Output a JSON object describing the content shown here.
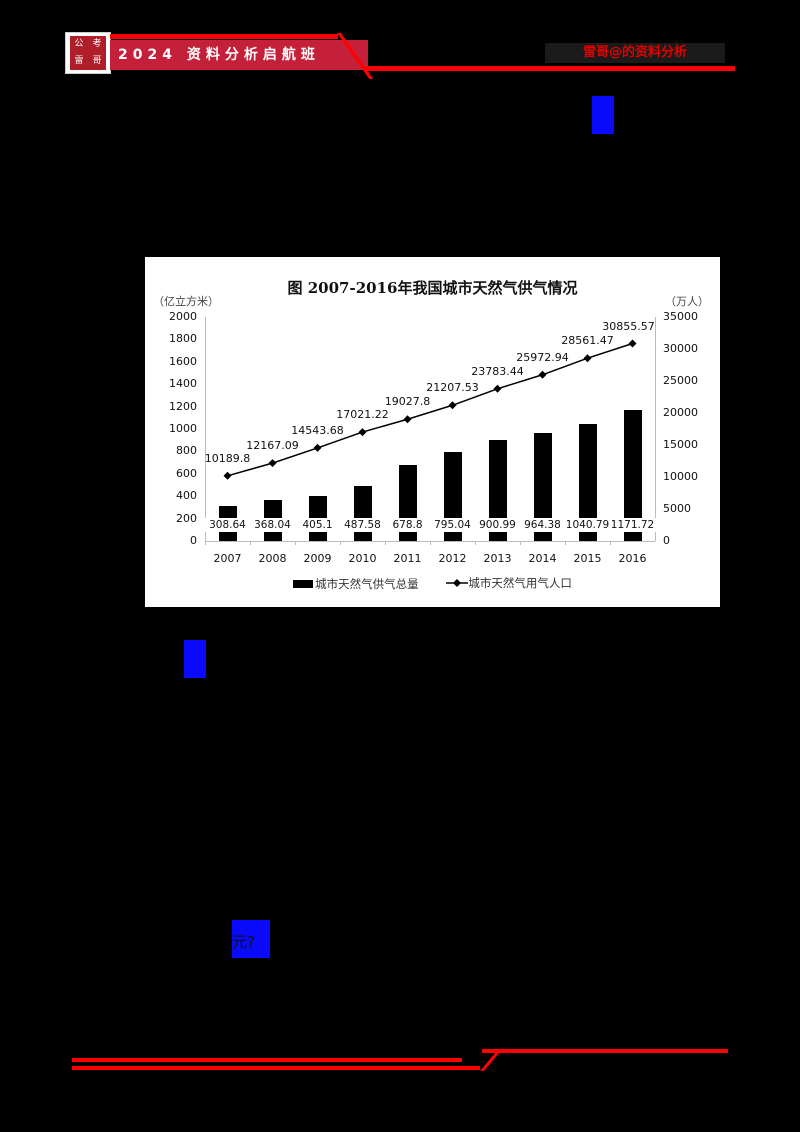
{
  "header": {
    "logo_chars": [
      "公",
      "考",
      "雷",
      "哥"
    ],
    "banner_title": "2024 资料分析启航班",
    "right_text": "雷哥@的资料分析",
    "colors": {
      "banner": "#c4203a",
      "line": "#ff0000",
      "right_text": "#e00000"
    }
  },
  "redactions": {
    "box3_text": "元?"
  },
  "chart_data": {
    "type": "bar+line",
    "title": "图 2007-2016年我国城市天然气供气情况",
    "categories": [
      "2007",
      "2008",
      "2009",
      "2010",
      "2011",
      "2012",
      "2013",
      "2014",
      "2015",
      "2016"
    ],
    "series": [
      {
        "name": "城市天然气供气总量",
        "type": "bar",
        "axis": "left",
        "unit": "（亿立方米）",
        "values": [
          308.64,
          368.04,
          405.1,
          487.58,
          678.8,
          795.04,
          900.99,
          964.38,
          1040.79,
          1171.72
        ],
        "labels": [
          "308.64",
          "368.04",
          "405.1",
          "487.58",
          "678.8",
          "795.04",
          "900.99",
          "964.38",
          "1040.79",
          "1171.72"
        ]
      },
      {
        "name": "城市天然气用气人口",
        "type": "line",
        "axis": "right",
        "unit": "（万人）",
        "values": [
          10189.8,
          12167.09,
          14543.68,
          17021.22,
          19027.8,
          21207.53,
          23783.44,
          25972.94,
          28561.47,
          30855.57
        ],
        "labels": [
          "10189.8",
          "12167.09",
          "14543.68",
          "17021.22",
          "19027.8",
          "21207.53",
          "23783.44",
          "25972.94",
          "28561.47",
          "30855.57"
        ]
      }
    ],
    "left_axis": {
      "label": "（亿立方米）",
      "ylim": [
        0,
        2000
      ],
      "ticks": [
        "2000",
        "1800",
        "1600",
        "1400",
        "1200",
        "1000",
        "800",
        "600",
        "400",
        "200",
        "0"
      ]
    },
    "right_axis": {
      "label": "（万人）",
      "ylim": [
        0,
        35000
      ],
      "ticks": [
        "35000",
        "30000",
        "25000",
        "20000",
        "15000",
        "10000",
        "5000",
        "0"
      ]
    },
    "legend": [
      "城市天然气供气总量",
      "城市天然气用气人口"
    ],
    "legend_position": "bottom",
    "grid": false
  }
}
